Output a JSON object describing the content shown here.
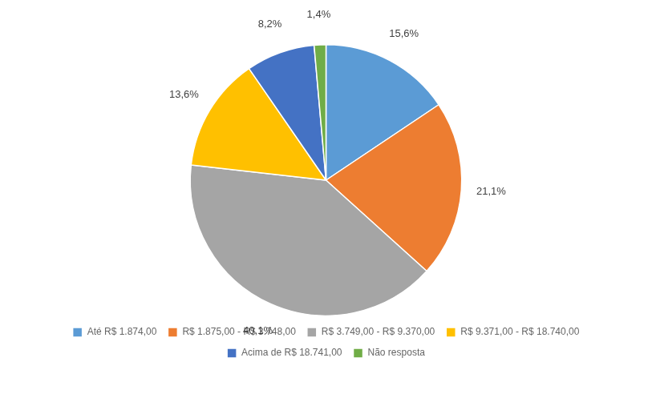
{
  "chart_data": {
    "type": "pie",
    "categories": [
      "Até R$ 1.874,00",
      "R$ 1.875,00 - R$ 3.748,00",
      "R$ 3.749,00 - R$ 9.370,00",
      "R$ 9.371,00 - R$ 18.740,00",
      "Acima de R$ 18.741,00",
      "Não resposta"
    ],
    "values": [
      15.6,
      21.1,
      40.1,
      13.6,
      8.2,
      1.4
    ],
    "value_labels": [
      "15,6%",
      "21,1%",
      "40,1%",
      "13,6%",
      "8,2%",
      "1,4%"
    ],
    "colors": [
      "#5B9BD5",
      "#ED7D31",
      "#A5A5A5",
      "#FFC000",
      "#4472C4",
      "#70AD47"
    ],
    "data_labels": true,
    "legend": "bottom"
  }
}
